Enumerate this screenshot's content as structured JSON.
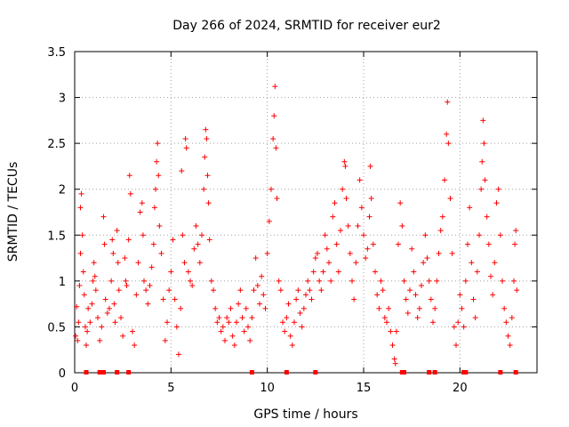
{
  "chart_data": {
    "type": "scatter",
    "title": "Day 266 of 2024, SRMTID for receiver eur2",
    "xlabel": "GPS time / hours",
    "ylabel": "SRMTID / TECUs",
    "xlim": [
      0,
      24
    ],
    "ylim": [
      0,
      3.5
    ],
    "x_ticks": [
      0,
      5,
      10,
      15,
      20
    ],
    "y_ticks": [
      0,
      0.5,
      1,
      1.5,
      2,
      2.5,
      3,
      3.5
    ],
    "x_tick_labels": [
      "0",
      "5",
      "10",
      "15",
      "20"
    ],
    "y_tick_labels": [
      "0",
      "0.5",
      "1",
      "1.5",
      "2",
      "2.5",
      "3",
      "3.5"
    ],
    "grid": true,
    "marker": "plus",
    "series_color": "#ff0000",
    "series": [
      {
        "name": "SRMTID",
        "note": "dense per-satellite point cloud; values sampled along visible arcs",
        "points": [
          [
            0.05,
            0.4
          ],
          [
            0.1,
            0.72
          ],
          [
            0.15,
            0.35
          ],
          [
            0.2,
            0.55
          ],
          [
            0.25,
            0.95
          ],
          [
            0.3,
            1.3
          ],
          [
            0.3,
            1.8
          ],
          [
            0.35,
            1.95
          ],
          [
            0.4,
            1.5
          ],
          [
            0.45,
            1.1
          ],
          [
            0.5,
            0.85
          ],
          [
            0.55,
            0.5
          ],
          [
            0.6,
            0.3
          ],
          [
            0.65,
            0.45
          ],
          [
            0.7,
            0.7
          ],
          [
            0.8,
            0.55
          ],
          [
            0.9,
            0.75
          ],
          [
            0.95,
            1.0
          ],
          [
            1.0,
            1.2
          ],
          [
            1.05,
            1.05
          ],
          [
            1.1,
            0.9
          ],
          [
            1.2,
            0.6
          ],
          [
            1.3,
            0.35
          ],
          [
            1.4,
            0.5
          ],
          [
            1.5,
            1.7
          ],
          [
            1.55,
            1.4
          ],
          [
            1.6,
            0.8
          ],
          [
            1.7,
            0.65
          ],
          [
            1.8,
            0.7
          ],
          [
            1.9,
            1.0
          ],
          [
            1.95,
            1.45
          ],
          [
            2.0,
            1.3
          ],
          [
            2.05,
            0.75
          ],
          [
            2.1,
            0.55
          ],
          [
            2.2,
            1.55
          ],
          [
            2.25,
            1.2
          ],
          [
            2.3,
            0.9
          ],
          [
            2.4,
            0.6
          ],
          [
            2.5,
            0.4
          ],
          [
            2.6,
            1.25
          ],
          [
            2.65,
            1.0
          ],
          [
            2.7,
            0.95
          ],
          [
            2.8,
            1.45
          ],
          [
            2.85,
            2.15
          ],
          [
            2.9,
            1.95
          ],
          [
            3.0,
            0.45
          ],
          [
            3.1,
            0.3
          ],
          [
            3.2,
            0.85
          ],
          [
            3.3,
            1.2
          ],
          [
            3.4,
            1.75
          ],
          [
            3.5,
            1.85
          ],
          [
            3.55,
            1.5
          ],
          [
            3.6,
            1.0
          ],
          [
            3.7,
            0.9
          ],
          [
            3.8,
            0.75
          ],
          [
            3.9,
            0.95
          ],
          [
            4.0,
            1.15
          ],
          [
            4.1,
            1.4
          ],
          [
            4.15,
            1.8
          ],
          [
            4.2,
            2.0
          ],
          [
            4.25,
            2.3
          ],
          [
            4.3,
            2.5
          ],
          [
            4.35,
            2.15
          ],
          [
            4.4,
            1.6
          ],
          [
            4.5,
            1.3
          ],
          [
            4.6,
            0.8
          ],
          [
            4.7,
            0.35
          ],
          [
            4.8,
            0.55
          ],
          [
            4.9,
            0.9
          ],
          [
            5.0,
            1.1
          ],
          [
            5.1,
            1.45
          ],
          [
            5.2,
            0.8
          ],
          [
            5.3,
            0.5
          ],
          [
            5.4,
            0.2
          ],
          [
            5.5,
            0.7
          ],
          [
            5.55,
            2.2
          ],
          [
            5.6,
            1.5
          ],
          [
            5.7,
            1.2
          ],
          [
            5.75,
            2.55
          ],
          [
            5.8,
            2.45
          ],
          [
            5.9,
            1.1
          ],
          [
            6.0,
            1.0
          ],
          [
            6.1,
            0.95
          ],
          [
            6.2,
            1.35
          ],
          [
            6.3,
            1.6
          ],
          [
            6.4,
            1.4
          ],
          [
            6.5,
            1.2
          ],
          [
            6.6,
            1.5
          ],
          [
            6.7,
            2.0
          ],
          [
            6.75,
            2.35
          ],
          [
            6.8,
            2.65
          ],
          [
            6.85,
            2.55
          ],
          [
            6.9,
            2.15
          ],
          [
            6.95,
            1.85
          ],
          [
            7.0,
            1.45
          ],
          [
            7.1,
            1.0
          ],
          [
            7.2,
            0.9
          ],
          [
            7.3,
            0.7
          ],
          [
            7.4,
            0.55
          ],
          [
            7.5,
            0.6
          ],
          [
            7.6,
            0.45
          ],
          [
            7.7,
            0.5
          ],
          [
            7.8,
            0.35
          ],
          [
            7.9,
            0.6
          ],
          [
            8.0,
            0.55
          ],
          [
            8.1,
            0.7
          ],
          [
            8.2,
            0.4
          ],
          [
            8.3,
            0.3
          ],
          [
            8.4,
            0.55
          ],
          [
            8.5,
            0.75
          ],
          [
            8.6,
            0.9
          ],
          [
            8.7,
            0.6
          ],
          [
            8.8,
            0.45
          ],
          [
            8.9,
            0.7
          ],
          [
            9.0,
            0.5
          ],
          [
            9.1,
            0.35
          ],
          [
            9.2,
            0.6
          ],
          [
            9.3,
            0.9
          ],
          [
            9.4,
            1.25
          ],
          [
            9.5,
            0.95
          ],
          [
            9.6,
            0.75
          ],
          [
            9.7,
            1.05
          ],
          [
            9.8,
            0.85
          ],
          [
            9.9,
            0.7
          ],
          [
            10.0,
            1.3
          ],
          [
            10.1,
            1.65
          ],
          [
            10.2,
            2.0
          ],
          [
            10.3,
            2.55
          ],
          [
            10.35,
            2.8
          ],
          [
            10.4,
            3.12
          ],
          [
            10.45,
            2.45
          ],
          [
            10.5,
            1.9
          ],
          [
            10.6,
            1.0
          ],
          [
            10.7,
            0.9
          ],
          [
            10.8,
            0.55
          ],
          [
            10.9,
            0.45
          ],
          [
            11.0,
            0.6
          ],
          [
            11.1,
            0.75
          ],
          [
            11.2,
            0.4
          ],
          [
            11.3,
            0.3
          ],
          [
            11.4,
            0.55
          ],
          [
            11.5,
            0.8
          ],
          [
            11.6,
            0.9
          ],
          [
            11.7,
            0.65
          ],
          [
            11.8,
            0.5
          ],
          [
            11.9,
            0.7
          ],
          [
            12.0,
            0.85
          ],
          [
            12.1,
            1.0
          ],
          [
            12.2,
            0.9
          ],
          [
            12.3,
            0.8
          ],
          [
            12.4,
            1.1
          ],
          [
            12.5,
            1.25
          ],
          [
            12.6,
            1.3
          ],
          [
            12.7,
            1.0
          ],
          [
            12.8,
            0.9
          ],
          [
            12.9,
            1.1
          ],
          [
            13.0,
            1.5
          ],
          [
            13.1,
            1.35
          ],
          [
            13.2,
            1.2
          ],
          [
            13.3,
            1.0
          ],
          [
            13.4,
            1.7
          ],
          [
            13.5,
            1.85
          ],
          [
            13.6,
            1.4
          ],
          [
            13.7,
            1.1
          ],
          [
            13.8,
            1.55
          ],
          [
            13.9,
            2.0
          ],
          [
            14.0,
            2.3
          ],
          [
            14.05,
            2.25
          ],
          [
            14.1,
            1.9
          ],
          [
            14.2,
            1.6
          ],
          [
            14.3,
            1.3
          ],
          [
            14.4,
            1.0
          ],
          [
            14.5,
            0.8
          ],
          [
            14.6,
            1.2
          ],
          [
            14.7,
            1.6
          ],
          [
            14.8,
            2.1
          ],
          [
            14.9,
            1.8
          ],
          [
            15.0,
            1.5
          ],
          [
            15.1,
            1.25
          ],
          [
            15.2,
            1.35
          ],
          [
            15.3,
            1.7
          ],
          [
            15.35,
            2.25
          ],
          [
            15.4,
            1.9
          ],
          [
            15.5,
            1.4
          ],
          [
            15.6,
            1.1
          ],
          [
            15.7,
            0.85
          ],
          [
            15.8,
            0.7
          ],
          [
            15.9,
            1.0
          ],
          [
            16.0,
            0.9
          ],
          [
            16.1,
            0.6
          ],
          [
            16.2,
            0.55
          ],
          [
            16.3,
            0.7
          ],
          [
            16.4,
            0.45
          ],
          [
            16.5,
            0.3
          ],
          [
            16.6,
            0.15
          ],
          [
            16.65,
            0.1
          ],
          [
            16.7,
            0.45
          ],
          [
            16.8,
            1.4
          ],
          [
            16.9,
            1.85
          ],
          [
            17.0,
            1.6
          ],
          [
            17.1,
            1.0
          ],
          [
            17.2,
            0.8
          ],
          [
            17.3,
            0.65
          ],
          [
            17.4,
            0.9
          ],
          [
            17.5,
            1.35
          ],
          [
            17.6,
            1.1
          ],
          [
            17.7,
            0.85
          ],
          [
            17.8,
            0.6
          ],
          [
            17.9,
            0.7
          ],
          [
            18.0,
            0.95
          ],
          [
            18.1,
            1.2
          ],
          [
            18.2,
            1.5
          ],
          [
            18.3,
            1.25
          ],
          [
            18.4,
            1.0
          ],
          [
            18.5,
            0.8
          ],
          [
            18.6,
            0.55
          ],
          [
            18.7,
            0.7
          ],
          [
            18.8,
            1.0
          ],
          [
            18.9,
            1.3
          ],
          [
            19.0,
            1.55
          ],
          [
            19.1,
            1.7
          ],
          [
            19.2,
            2.1
          ],
          [
            19.3,
            2.6
          ],
          [
            19.35,
            2.95
          ],
          [
            19.4,
            2.5
          ],
          [
            19.5,
            1.9
          ],
          [
            19.6,
            1.3
          ],
          [
            19.7,
            0.5
          ],
          [
            19.8,
            0.3
          ],
          [
            19.9,
            0.55
          ],
          [
            20.0,
            0.85
          ],
          [
            20.1,
            0.7
          ],
          [
            20.2,
            0.5
          ],
          [
            20.3,
            1.0
          ],
          [
            20.4,
            1.4
          ],
          [
            20.5,
            1.8
          ],
          [
            20.6,
            1.2
          ],
          [
            20.7,
            0.8
          ],
          [
            20.8,
            0.6
          ],
          [
            20.9,
            1.1
          ],
          [
            21.0,
            1.5
          ],
          [
            21.1,
            2.0
          ],
          [
            21.15,
            2.3
          ],
          [
            21.2,
            2.75
          ],
          [
            21.25,
            2.5
          ],
          [
            21.3,
            2.1
          ],
          [
            21.4,
            1.7
          ],
          [
            21.5,
            1.4
          ],
          [
            21.6,
            1.05
          ],
          [
            21.7,
            0.85
          ],
          [
            21.8,
            1.2
          ],
          [
            21.9,
            1.85
          ],
          [
            22.0,
            2.0
          ],
          [
            22.1,
            1.5
          ],
          [
            22.2,
            1.0
          ],
          [
            22.3,
            0.7
          ],
          [
            22.4,
            0.55
          ],
          [
            22.5,
            0.4
          ],
          [
            22.6,
            0.3
          ],
          [
            22.7,
            0.6
          ],
          [
            22.8,
            1.0
          ],
          [
            22.85,
            1.4
          ],
          [
            22.9,
            1.55
          ],
          [
            22.95,
            0.9
          ]
        ]
      }
    ],
    "data_gaps_at_zero": [
      0.6,
      1.3,
      1.5,
      2.2,
      2.8,
      9.2,
      11.0,
      12.5,
      17.0,
      17.1,
      18.4,
      18.7,
      20.2,
      20.3,
      22.1,
      22.9
    ]
  }
}
